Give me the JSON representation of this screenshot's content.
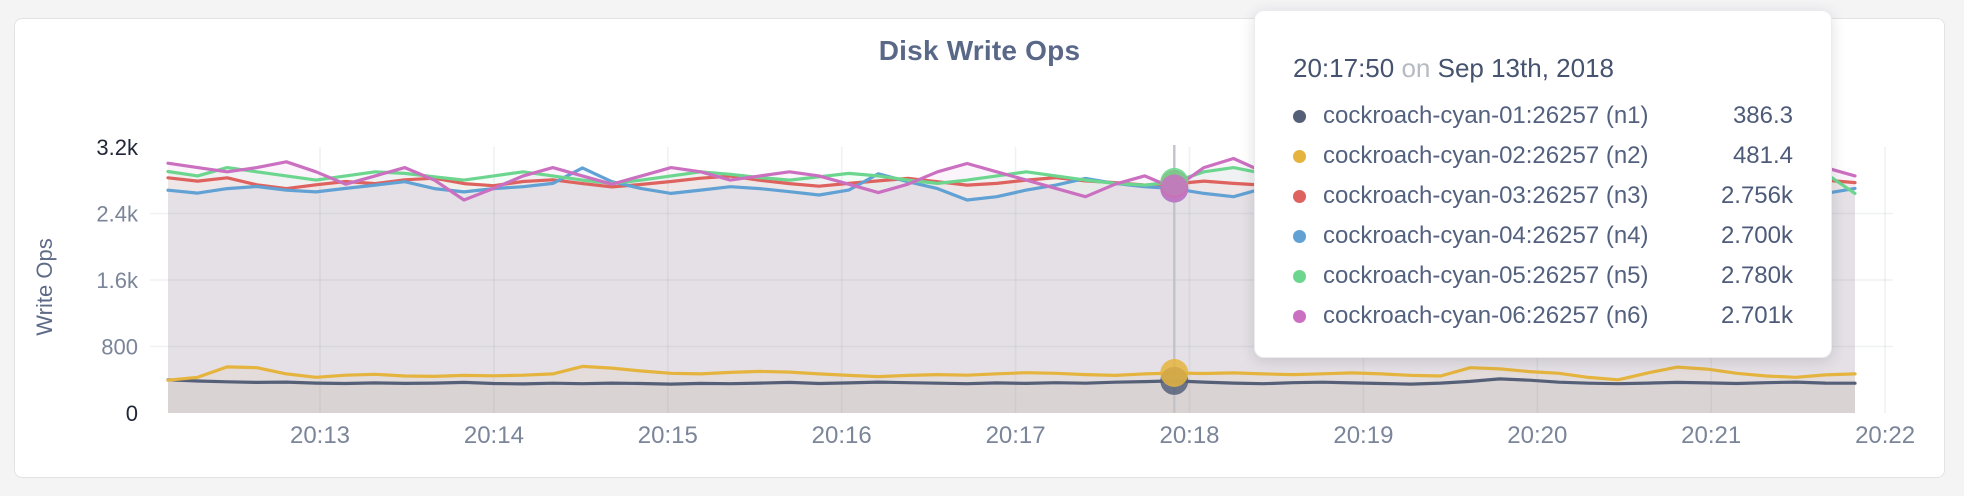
{
  "chart_data": {
    "type": "line",
    "title": "Disk Write Ops",
    "ylabel": "Write Ops",
    "xlabel": "",
    "ylim": [
      0,
      3200
    ],
    "grid": true,
    "legend_position": "tooltip",
    "sample_interval_seconds": 10,
    "hover_index": 34,
    "x_ticks": [
      "20:13",
      "20:14",
      "20:15",
      "20:16",
      "20:17",
      "20:18",
      "20:19",
      "20:20",
      "20:21",
      "20:22"
    ],
    "y_ticks": [
      {
        "label": "0",
        "value": 0,
        "emphasized": true
      },
      {
        "label": "800",
        "value": 800,
        "emphasized": false
      },
      {
        "label": "1.6k",
        "value": 1600,
        "emphasized": false
      },
      {
        "label": "2.4k",
        "value": 2400,
        "emphasized": false
      },
      {
        "label": "3.2k",
        "value": 3200,
        "emphasized": true
      }
    ],
    "series": [
      {
        "name": "cockroach-cyan-01:26257 (n1)",
        "color": "#556078",
        "values": [
          400,
          385,
          375,
          368,
          372,
          360,
          355,
          362,
          356,
          360,
          368,
          355,
          350,
          358,
          352,
          360,
          355,
          348,
          356,
          352,
          360,
          368,
          355,
          362,
          372,
          365,
          358,
          352,
          362,
          356,
          365,
          358,
          370,
          378,
          386.3,
          372,
          360,
          352,
          365,
          370,
          362,
          355,
          348,
          360,
          380,
          410,
          395,
          370,
          358,
          352,
          360,
          368,
          362,
          355,
          365,
          372,
          360,
          358
        ]
      },
      {
        "name": "cockroach-cyan-02:26257 (n2)",
        "color": "#e5b43e",
        "values": [
          395,
          430,
          555,
          545,
          470,
          430,
          455,
          465,
          445,
          440,
          452,
          448,
          455,
          470,
          560,
          540,
          505,
          478,
          470,
          488,
          500,
          492,
          470,
          452,
          438,
          452,
          462,
          455,
          472,
          485,
          478,
          462,
          452,
          470,
          481.4,
          475,
          482,
          470,
          462,
          472,
          482,
          470,
          452,
          445,
          545,
          530,
          498,
          478,
          428,
          400,
          482,
          552,
          528,
          478,
          445,
          430,
          458,
          470
        ]
      },
      {
        "name": "cockroach-cyan-03:26257 (n3)",
        "color": "#de625e",
        "values": [
          2830,
          2790,
          2830,
          2745,
          2700,
          2745,
          2785,
          2760,
          2805,
          2825,
          2760,
          2735,
          2785,
          2805,
          2760,
          2720,
          2750,
          2785,
          2825,
          2850,
          2800,
          2760,
          2728,
          2762,
          2792,
          2822,
          2782,
          2742,
          2762,
          2802,
          2832,
          2792,
          2772,
          2742,
          2756,
          2790,
          2762,
          2742,
          2772,
          2802,
          2782,
          2752,
          2905,
          2782,
          2742,
          2772,
          2802,
          2762,
          2732,
          2762,
          2792,
          2812,
          2772,
          2742,
          2762,
          2782,
          2802,
          2772
        ]
      },
      {
        "name": "cockroach-cyan-04:26257 (n4)",
        "color": "#61a1d4",
        "values": [
          2680,
          2645,
          2700,
          2725,
          2680,
          2660,
          2702,
          2742,
          2782,
          2700,
          2660,
          2700,
          2722,
          2762,
          2948,
          2782,
          2700,
          2642,
          2682,
          2722,
          2700,
          2662,
          2622,
          2682,
          2878,
          2782,
          2700,
          2562,
          2602,
          2682,
          2742,
          2822,
          2762,
          2722,
          2700,
          2642,
          2602,
          2702,
          2762,
          2722,
          2682,
          2642,
          2702,
          2742,
          2700,
          2662,
          2702,
          2722,
          2682,
          2642,
          2682,
          2702,
          2722,
          2762,
          2702,
          2662,
          2642,
          2702
        ]
      },
      {
        "name": "cockroach-cyan-05:26257 (n5)",
        "color": "#6cd68f",
        "values": [
          2905,
          2852,
          2952,
          2902,
          2852,
          2802,
          2852,
          2902,
          2882,
          2842,
          2802,
          2852,
          2902,
          2852,
          2802,
          2762,
          2802,
          2852,
          2902,
          2872,
          2832,
          2802,
          2842,
          2882,
          2852,
          2802,
          2762,
          2802,
          2852,
          2902,
          2852,
          2802,
          2762,
          2742,
          2780,
          2902,
          2952,
          2882,
          2802,
          2762,
          2802,
          2852,
          2822,
          2782,
          2822,
          2862,
          2832,
          2792,
          2762,
          2802,
          2842,
          2872,
          2832,
          2792,
          2812,
          2852,
          2882,
          2642
        ]
      },
      {
        "name": "cockroach-cyan-06:26257 (n6)",
        "color": "#cb70c1",
        "values": [
          3005,
          2952,
          2902,
          2952,
          3022,
          2902,
          2752,
          2852,
          2952,
          2802,
          2562,
          2702,
          2852,
          2952,
          2852,
          2752,
          2852,
          2952,
          2902,
          2802,
          2852,
          2902,
          2852,
          2752,
          2652,
          2752,
          2902,
          3002,
          2902,
          2802,
          2702,
          2602,
          2752,
          2852,
          2701,
          2952,
          3062,
          2902,
          2802,
          2752,
          2852,
          2952,
          2852,
          2752,
          2802,
          2902,
          2852,
          2752,
          2702,
          2802,
          2902,
          2952,
          2852,
          2752,
          2702,
          2802,
          2952,
          2852
        ]
      }
    ]
  },
  "tooltip": {
    "time": "20:17:50",
    "conjunction": "on",
    "date": "Sep 13th, 2018",
    "rows": [
      {
        "label": "cockroach-cyan-01:26257 (n1)",
        "value": "386.3",
        "color": "#556078"
      },
      {
        "label": "cockroach-cyan-02:26257 (n2)",
        "value": "481.4",
        "color": "#e5b43e"
      },
      {
        "label": "cockroach-cyan-03:26257 (n3)",
        "value": "2.756k",
        "color": "#de625e"
      },
      {
        "label": "cockroach-cyan-04:26257 (n4)",
        "value": "2.700k",
        "color": "#61a1d4"
      },
      {
        "label": "cockroach-cyan-05:26257 (n5)",
        "value": "2.780k",
        "color": "#6cd68f"
      },
      {
        "label": "cockroach-cyan-06:26257 (n6)",
        "value": "2.701k",
        "color": "#cb70c1"
      }
    ]
  },
  "colors": {
    "title": "#5a6888",
    "axis_tick": "#7b8599",
    "axis_tick_emphasized": "#1f2737",
    "gridline": "rgba(70,75,95,0.08)",
    "hover_guideline": "#c2c3c9",
    "card_background": "#ffffff",
    "page_background": "#f4f4f5"
  }
}
